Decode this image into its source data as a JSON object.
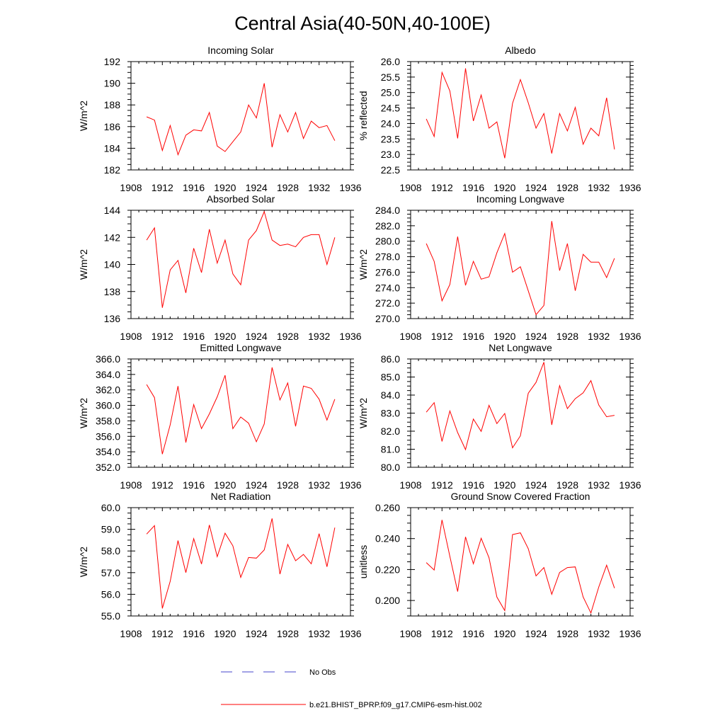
{
  "figure": {
    "title": "Central Asia(40-50N,40-100E)"
  },
  "colors": {
    "model": "#ff0000",
    "obs": "#4444cc",
    "axis": "#000000",
    "background": "#ffffff"
  },
  "legend": {
    "entries": [
      {
        "label": "No Obs",
        "style": "dashed",
        "color": "#4444cc"
      },
      {
        "label": "b.e21.BHIST_BPRP.f09_g17.CMIP6-esm-hist.002",
        "style": "solid",
        "color": "#ff0000"
      }
    ]
  },
  "chart_data": [
    {
      "type": "line",
      "title": "Incoming Solar",
      "ylabel": "W/m^2",
      "xlim": [
        1908,
        1936
      ],
      "ylim": [
        182,
        192
      ],
      "x_ticks": [
        1908,
        1912,
        1916,
        1920,
        1924,
        1928,
        1932,
        1936
      ],
      "x_tick_labels": [
        "1908",
        "1912",
        "1916",
        "1920",
        "1924",
        "1928",
        "1932",
        "1936"
      ],
      "y_ticks": [
        182,
        184,
        186,
        188,
        190,
        192
      ],
      "y_tick_labels": [
        "182",
        "184",
        "186",
        "188",
        "190",
        "192"
      ],
      "x": [
        1910,
        1911,
        1912,
        1913,
        1914,
        1915,
        1916,
        1917,
        1918,
        1919,
        1920,
        1921,
        1922,
        1923,
        1924,
        1925,
        1926,
        1927,
        1928,
        1929,
        1930,
        1931,
        1932,
        1933,
        1934
      ],
      "series": [
        {
          "name": "model",
          "values": [
            186.9,
            186.6,
            183.8,
            186.1,
            183.4,
            185.2,
            185.7,
            185.6,
            187.3,
            184.2,
            183.7,
            184.6,
            185.5,
            188.0,
            186.8,
            190.0,
            184.1,
            187.1,
            185.5,
            187.3,
            184.9,
            186.5,
            185.9,
            186.1,
            184.7
          ]
        }
      ]
    },
    {
      "type": "line",
      "title": "Albedo",
      "ylabel": "% reflected",
      "xlim": [
        1908,
        1936
      ],
      "ylim": [
        22.5,
        26.0
      ],
      "x_ticks": [
        1908,
        1912,
        1916,
        1920,
        1924,
        1928,
        1932,
        1936
      ],
      "x_tick_labels": [
        "1908",
        "1912",
        "1916",
        "1920",
        "1924",
        "1928",
        "1932",
        "1936"
      ],
      "y_ticks": [
        22.5,
        23.0,
        23.5,
        24.0,
        24.5,
        25.0,
        25.5,
        26.0
      ],
      "y_tick_labels": [
        "22.5",
        "23.0",
        "23.5",
        "24.0",
        "24.5",
        "25.0",
        "25.5",
        "26.0"
      ],
      "x": [
        1910,
        1911,
        1912,
        1913,
        1914,
        1915,
        1916,
        1917,
        1918,
        1919,
        1920,
        1921,
        1922,
        1923,
        1924,
        1925,
        1926,
        1927,
        1928,
        1929,
        1930,
        1931,
        1932,
        1933,
        1934
      ],
      "series": [
        {
          "name": "model",
          "values": [
            24.15,
            23.58,
            25.65,
            25.05,
            23.52,
            25.78,
            24.08,
            24.92,
            23.85,
            24.05,
            22.88,
            24.65,
            25.42,
            24.67,
            23.85,
            24.32,
            23.03,
            24.32,
            23.76,
            24.52,
            23.33,
            23.85,
            23.6,
            24.83,
            23.16
          ]
        }
      ]
    },
    {
      "type": "line",
      "title": "Absorbed Solar",
      "ylabel": "W/m^2",
      "xlim": [
        1908,
        1936
      ],
      "ylim": [
        136,
        144
      ],
      "x_ticks": [
        1908,
        1912,
        1916,
        1920,
        1924,
        1928,
        1932,
        1936
      ],
      "x_tick_labels": [
        "1908",
        "1912",
        "1916",
        "1920",
        "1924",
        "1928",
        "1932",
        "1936"
      ],
      "y_ticks": [
        136,
        138,
        140,
        142,
        144
      ],
      "y_tick_labels": [
        "136",
        "138",
        "140",
        "142",
        "144"
      ],
      "x": [
        1910,
        1911,
        1912,
        1913,
        1914,
        1915,
        1916,
        1917,
        1918,
        1919,
        1920,
        1921,
        1922,
        1923,
        1924,
        1925,
        1926,
        1927,
        1928,
        1929,
        1930,
        1931,
        1932,
        1933,
        1934
      ],
      "series": [
        {
          "name": "model",
          "values": [
            141.8,
            142.7,
            136.8,
            139.6,
            140.3,
            137.9,
            141.2,
            139.4,
            142.6,
            140.1,
            141.8,
            139.3,
            138.5,
            141.8,
            142.5,
            143.9,
            141.8,
            141.4,
            141.5,
            141.3,
            142.0,
            142.2,
            142.2,
            140.0,
            142.0
          ]
        }
      ]
    },
    {
      "type": "line",
      "title": "Incoming Longwave",
      "ylabel": "W/m^2",
      "xlim": [
        1908,
        1936
      ],
      "ylim": [
        270,
        284
      ],
      "x_ticks": [
        1908,
        1912,
        1916,
        1920,
        1924,
        1928,
        1932,
        1936
      ],
      "x_tick_labels": [
        "1908",
        "1912",
        "1916",
        "1920",
        "1924",
        "1928",
        "1932",
        "1936"
      ],
      "y_ticks": [
        270,
        272,
        274,
        276,
        278,
        280,
        282,
        284
      ],
      "y_tick_labels": [
        "270.0",
        "272.0",
        "274.0",
        "276.0",
        "278.0",
        "280.0",
        "282.0",
        "284.0"
      ],
      "x": [
        1910,
        1911,
        1912,
        1913,
        1914,
        1915,
        1916,
        1917,
        1918,
        1919,
        1920,
        1921,
        1922,
        1923,
        1924,
        1925,
        1926,
        1927,
        1928,
        1929,
        1930,
        1931,
        1932,
        1933,
        1934
      ],
      "series": [
        {
          "name": "model",
          "values": [
            279.7,
            277.4,
            272.3,
            274.4,
            280.6,
            274.3,
            277.4,
            275.1,
            275.4,
            278.5,
            281.0,
            276.0,
            276.7,
            273.6,
            270.5,
            271.7,
            282.6,
            276.2,
            279.7,
            273.6,
            278.3,
            277.3,
            277.3,
            275.3,
            277.8
          ]
        }
      ]
    },
    {
      "type": "line",
      "title": "Emitted Longwave",
      "ylabel": "W/m^2",
      "xlim": [
        1908,
        1936
      ],
      "ylim": [
        352,
        366
      ],
      "x_ticks": [
        1908,
        1912,
        1916,
        1920,
        1924,
        1928,
        1932,
        1936
      ],
      "x_tick_labels": [
        "1908",
        "1912",
        "1916",
        "1920",
        "1924",
        "1928",
        "1932",
        "1936"
      ],
      "y_ticks": [
        352,
        354,
        356,
        358,
        360,
        362,
        364,
        366
      ],
      "y_tick_labels": [
        "352.0",
        "354.0",
        "356.0",
        "358.0",
        "360.0",
        "362.0",
        "364.0",
        "366.0"
      ],
      "x": [
        1910,
        1911,
        1912,
        1913,
        1914,
        1915,
        1916,
        1917,
        1918,
        1919,
        1920,
        1921,
        1922,
        1923,
        1924,
        1925,
        1926,
        1927,
        1928,
        1929,
        1930,
        1931,
        1932,
        1933,
        1934
      ],
      "series": [
        {
          "name": "model",
          "values": [
            362.7,
            361.0,
            353.7,
            357.5,
            362.5,
            355.2,
            360.1,
            357.0,
            358.9,
            361.1,
            363.9,
            357.0,
            358.5,
            357.7,
            355.3,
            357.6,
            364.9,
            360.7,
            362.9,
            357.3,
            362.5,
            362.2,
            360.8,
            358.1,
            360.8
          ]
        }
      ]
    },
    {
      "type": "line",
      "title": "Net Longwave",
      "ylabel": "W/m^2",
      "xlim": [
        1908,
        1936
      ],
      "ylim": [
        80,
        86
      ],
      "x_ticks": [
        1908,
        1912,
        1916,
        1920,
        1924,
        1928,
        1932,
        1936
      ],
      "x_tick_labels": [
        "1908",
        "1912",
        "1916",
        "1920",
        "1924",
        "1928",
        "1932",
        "1936"
      ],
      "y_ticks": [
        80,
        81,
        82,
        83,
        84,
        85,
        86
      ],
      "y_tick_labels": [
        "80.0",
        "81.0",
        "82.0",
        "83.0",
        "84.0",
        "85.0",
        "86.0"
      ],
      "x": [
        1910,
        1911,
        1912,
        1913,
        1914,
        1915,
        1916,
        1917,
        1918,
        1919,
        1920,
        1921,
        1922,
        1923,
        1924,
        1925,
        1926,
        1927,
        1928,
        1929,
        1930,
        1931,
        1932,
        1933,
        1934
      ],
      "series": [
        {
          "name": "model",
          "values": [
            83.05,
            83.58,
            81.43,
            83.12,
            81.92,
            80.98,
            82.67,
            81.99,
            83.43,
            82.42,
            82.98,
            81.08,
            81.74,
            84.1,
            84.7,
            85.82,
            82.35,
            84.52,
            83.25,
            83.8,
            84.12,
            84.8,
            83.45,
            82.8,
            82.88
          ]
        }
      ]
    },
    {
      "type": "line",
      "title": "Net Radiation",
      "ylabel": "W/m^2",
      "xlim": [
        1908,
        1936
      ],
      "ylim": [
        55,
        60
      ],
      "x_ticks": [
        1908,
        1912,
        1916,
        1920,
        1924,
        1928,
        1932,
        1936
      ],
      "x_tick_labels": [
        "1908",
        "1912",
        "1916",
        "1920",
        "1924",
        "1928",
        "1932",
        "1936"
      ],
      "y_ticks": [
        55,
        56,
        57,
        58,
        59,
        60
      ],
      "y_tick_labels": [
        "55.0",
        "56.0",
        "57.0",
        "58.0",
        "59.0",
        "60.0"
      ],
      "x": [
        1910,
        1911,
        1912,
        1913,
        1914,
        1915,
        1916,
        1917,
        1918,
        1919,
        1920,
        1921,
        1922,
        1923,
        1924,
        1925,
        1926,
        1927,
        1928,
        1929,
        1930,
        1931,
        1932,
        1933,
        1934
      ],
      "series": [
        {
          "name": "model",
          "values": [
            58.78,
            59.17,
            55.35,
            56.6,
            58.48,
            57.0,
            58.57,
            57.4,
            59.2,
            57.74,
            58.82,
            58.24,
            56.78,
            57.7,
            57.67,
            58.05,
            59.5,
            56.93,
            58.3,
            57.55,
            57.84,
            57.41,
            58.8,
            57.27,
            59.08
          ]
        }
      ]
    },
    {
      "type": "line",
      "title": "Ground Snow Covered Fraction",
      "ylabel": "unitless",
      "xlim": [
        1908,
        1936
      ],
      "ylim": [
        0.19,
        0.26
      ],
      "x_ticks": [
        1908,
        1912,
        1916,
        1920,
        1924,
        1928,
        1932,
        1936
      ],
      "x_tick_labels": [
        "1908",
        "1912",
        "1916",
        "1920",
        "1924",
        "1928",
        "1932",
        "1936"
      ],
      "y_ticks": [
        0.2,
        0.22,
        0.24,
        0.26
      ],
      "y_tick_labels": [
        "0.200",
        "0.220",
        "0.240",
        "0.260"
      ],
      "x": [
        1910,
        1911,
        1912,
        1913,
        1914,
        1915,
        1916,
        1917,
        1918,
        1919,
        1920,
        1921,
        1922,
        1923,
        1924,
        1925,
        1926,
        1927,
        1928,
        1929,
        1930,
        1931,
        1932,
        1933,
        1934
      ],
      "series": [
        {
          "name": "model",
          "values": [
            0.2245,
            0.2197,
            0.2521,
            0.2285,
            0.2058,
            0.2411,
            0.2237,
            0.2402,
            0.2276,
            0.2022,
            0.1935,
            0.2426,
            0.2437,
            0.2335,
            0.2159,
            0.2213,
            0.204,
            0.2181,
            0.2213,
            0.2217,
            0.2023,
            0.1919,
            0.2087,
            0.2228,
            0.208
          ]
        }
      ]
    }
  ]
}
